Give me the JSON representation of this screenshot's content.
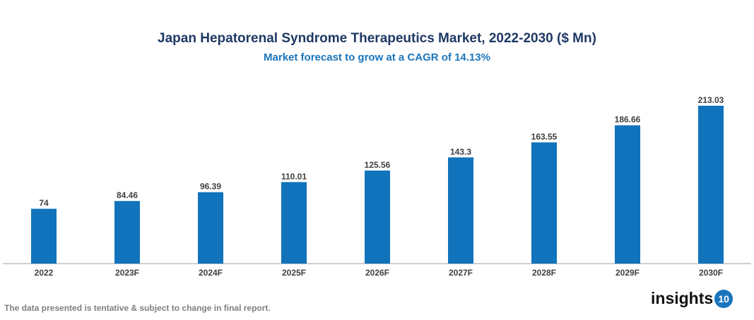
{
  "chart_data": {
    "type": "bar",
    "title": "Japan Hepatorenal Syndrome Therapeutics Market, 2022-2030 ($ Mn)",
    "subtitle": "Market forecast to grow at a CAGR of 14.13%",
    "categories": [
      "2022",
      "2023F",
      "2024F",
      "2025F",
      "2026F",
      "2027F",
      "2028F",
      "2029F",
      "2030F"
    ],
    "values": [
      74,
      84.46,
      96.39,
      110.01,
      125.56,
      143.3,
      163.55,
      186.66,
      213.03
    ],
    "value_labels": [
      "74",
      "84.46",
      "96.39",
      "110.01",
      "125.56",
      "143.3",
      "163.55",
      "186.66",
      "213.03"
    ],
    "xlabel": "",
    "ylabel": "",
    "ylim": [
      0,
      213.03
    ],
    "grid": false,
    "bar_color": "#1173bb"
  },
  "footnote": "The data presented is tentative & subject to change in final report.",
  "logo": {
    "text": "insights",
    "number": "10"
  }
}
